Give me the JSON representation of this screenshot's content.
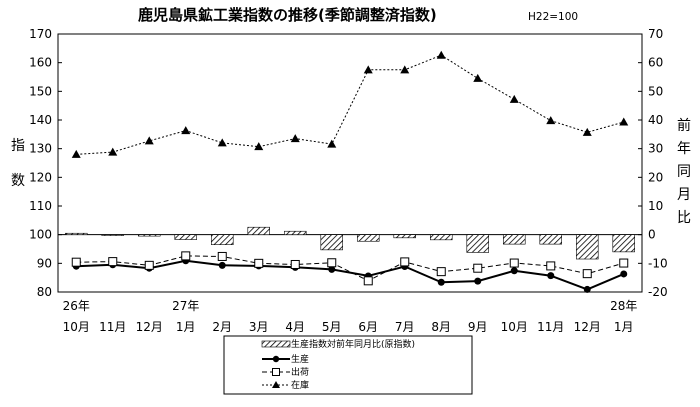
{
  "chart_data": {
    "type": "line",
    "title": "鹿児島県鉱工業指数の推移(季節調整済指数)",
    "subtitle": "H22=100",
    "ylabel_left": [
      "指",
      "数"
    ],
    "ylabel_right": [
      "前",
      "年",
      "同",
      "月",
      "比"
    ],
    "ylim_left": [
      80,
      170
    ],
    "ylim_right": [
      -20,
      70
    ],
    "yticks_left": [
      "80",
      "90",
      "100",
      "110",
      "120",
      "130",
      "140",
      "150",
      "160",
      "170"
    ],
    "yticks_right": [
      "-20",
      "-10",
      "0",
      "10",
      "20",
      "30",
      "40",
      "50",
      "60",
      "70"
    ],
    "categories": [
      "10月",
      "11月",
      "12月",
      "1月",
      "2月",
      "3月",
      "4月",
      "5月",
      "6月",
      "7月",
      "8月",
      "9月",
      "10月",
      "11月",
      "12月",
      "1月"
    ],
    "year_labels": [
      {
        "index": 0,
        "label": "26年"
      },
      {
        "index": 3,
        "label": "27年"
      },
      {
        "index": 15,
        "label": "28年"
      }
    ],
    "bars": {
      "name": "生産指数対前年同月比(原指数)",
      "axis": "right",
      "values": [
        0.5,
        -0.3,
        -0.5,
        -1.7,
        -3.5,
        2.6,
        1.2,
        -5.3,
        -2.3,
        -1.1,
        -1.8,
        -6.2,
        -3.3,
        -3.3,
        -8.5,
        -6.0
      ]
    },
    "series": [
      {
        "name": "生産",
        "axis": "left",
        "marker": "circle",
        "values": [
          89.0,
          89.5,
          88.3,
          90.9,
          89.3,
          89.1,
          88.6,
          87.9,
          85.6,
          88.9,
          83.4,
          83.8,
          87.4,
          85.7,
          80.9,
          86.3
        ]
      },
      {
        "name": "出荷",
        "axis": "left",
        "marker": "square",
        "values": [
          90.4,
          90.6,
          89.3,
          92.6,
          92.4,
          90.0,
          89.6,
          90.2,
          83.9,
          90.5,
          87.1,
          88.3,
          90.1,
          89.1,
          86.4,
          90.1
        ]
      },
      {
        "name": "在庫",
        "axis": "left",
        "marker": "triangle",
        "values": [
          128.0,
          128.8,
          132.7,
          136.3,
          132.0,
          130.7,
          133.5,
          131.6,
          157.5,
          157.5,
          162.6,
          154.5,
          147.2,
          139.8,
          135.7,
          139.3
        ]
      }
    ],
    "legend": {
      "placement": "bottom-center"
    },
    "grid": false
  }
}
